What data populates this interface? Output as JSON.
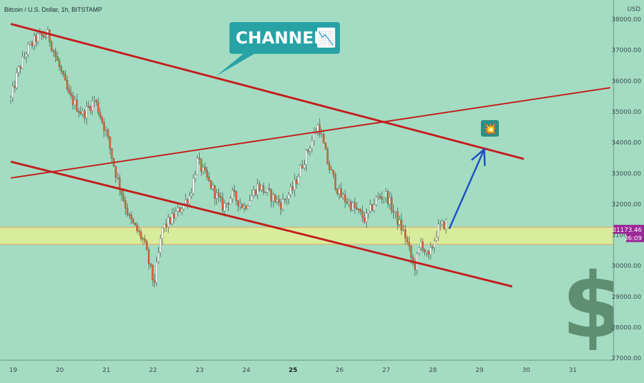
{
  "header": {
    "symbol": "Bitcoin / U.S. Dollar, 1h, BITSTAMP"
  },
  "y_axis": {
    "unit": "USD",
    "ticks": [
      "38000.00",
      "37000.00",
      "36000.00",
      "35000.00",
      "34000.00",
      "33000.00",
      "32000.00",
      "31000.00",
      "30000.00",
      "29000.00",
      "28000.00",
      "27000.00"
    ]
  },
  "x_axis": {
    "ticks": [
      {
        "label": "19",
        "bold": false
      },
      {
        "label": "20",
        "bold": false
      },
      {
        "label": "21",
        "bold": false
      },
      {
        "label": "22",
        "bold": false
      },
      {
        "label": "23",
        "bold": false
      },
      {
        "label": "24",
        "bold": false
      },
      {
        "label": "25",
        "bold": true
      },
      {
        "label": "26",
        "bold": false
      },
      {
        "label": "27",
        "bold": false
      },
      {
        "label": "28",
        "bold": false
      },
      {
        "label": "29",
        "bold": false
      },
      {
        "label": "30",
        "bold": false
      },
      {
        "label": "31",
        "bold": false
      }
    ]
  },
  "price_tag": {
    "value": "31173.46",
    "countdown": "36:09",
    "color": "#9c2796"
  },
  "callout": {
    "text": "CHANNEL",
    "emoji": "📉",
    "color": "#27a3a6"
  },
  "marker_emoji": "💥",
  "colors": {
    "background": "#a3dcc2",
    "trendline": "#c41e1e",
    "support_zone": "#d8ec9c",
    "support_border": "#e5a35a",
    "candle_up": "#ffffff",
    "candle_down": "#e8622a",
    "arrow": "#1d4fc4",
    "dollar": "#5f8f73"
  },
  "icons": {
    "dollar_sign": "$"
  },
  "chart_data": {
    "type": "candlestick",
    "instrument": "Bitcoin / U.S. Dollar",
    "timeframe": "1h",
    "exchange": "BITSTAMP",
    "ylim": [
      26800,
      38300
    ],
    "xlim": [
      18.95,
      31.8
    ],
    "key_points": [
      {
        "x": 18.95,
        "y": 35400
      },
      {
        "x": 19.1,
        "y": 36300
      },
      {
        "x": 19.3,
        "y": 37000
      },
      {
        "x": 19.5,
        "y": 37400
      },
      {
        "x": 19.75,
        "y": 37500
      },
      {
        "x": 20.0,
        "y": 36400
      },
      {
        "x": 20.2,
        "y": 35500
      },
      {
        "x": 20.5,
        "y": 34900
      },
      {
        "x": 20.75,
        "y": 35400
      },
      {
        "x": 21.0,
        "y": 34300
      },
      {
        "x": 21.2,
        "y": 33000
      },
      {
        "x": 21.5,
        "y": 31500
      },
      {
        "x": 21.8,
        "y": 30800
      },
      {
        "x": 22.02,
        "y": 29400
      },
      {
        "x": 22.2,
        "y": 31200
      },
      {
        "x": 22.5,
        "y": 31700
      },
      {
        "x": 22.8,
        "y": 32300
      },
      {
        "x": 22.95,
        "y": 33400
      },
      {
        "x": 23.2,
        "y": 32700
      },
      {
        "x": 23.5,
        "y": 31900
      },
      {
        "x": 23.7,
        "y": 32300
      },
      {
        "x": 23.95,
        "y": 31900
      },
      {
        "x": 24.25,
        "y": 32600
      },
      {
        "x": 24.5,
        "y": 32300
      },
      {
        "x": 24.75,
        "y": 32000
      },
      {
        "x": 25.0,
        "y": 32500
      },
      {
        "x": 25.2,
        "y": 33300
      },
      {
        "x": 25.55,
        "y": 34600
      },
      {
        "x": 25.75,
        "y": 33300
      },
      {
        "x": 26.0,
        "y": 32300
      },
      {
        "x": 26.3,
        "y": 31900
      },
      {
        "x": 26.55,
        "y": 31500
      },
      {
        "x": 26.8,
        "y": 32200
      },
      {
        "x": 27.0,
        "y": 32300
      },
      {
        "x": 27.2,
        "y": 31600
      },
      {
        "x": 27.4,
        "y": 31000
      },
      {
        "x": 27.6,
        "y": 29900
      },
      {
        "x": 27.75,
        "y": 30800
      },
      {
        "x": 27.9,
        "y": 30200
      },
      {
        "x": 28.1,
        "y": 31200
      },
      {
        "x": 28.3,
        "y": 31400
      }
    ],
    "last_price": 31173.46,
    "support_zone": [
      30700,
      31250
    ],
    "trendlines": [
      {
        "name": "channel-top",
        "from": {
          "x": 18.95,
          "y": 37850
        },
        "to": {
          "x": 29.95,
          "y": 33470
        }
      },
      {
        "name": "channel-bottom",
        "from": {
          "x": 18.95,
          "y": 33380
        },
        "to": {
          "x": 29.7,
          "y": 29330
        }
      },
      {
        "name": "rising-line",
        "from": {
          "x": 18.95,
          "y": 32850
        },
        "to": {
          "x": 31.8,
          "y": 35780
        }
      }
    ],
    "projection_arrow": {
      "from": {
        "x": 28.35,
        "y": 31200
      },
      "to": {
        "x": 29.1,
        "y": 33780
      }
    },
    "annotation": "CHANNEL"
  }
}
